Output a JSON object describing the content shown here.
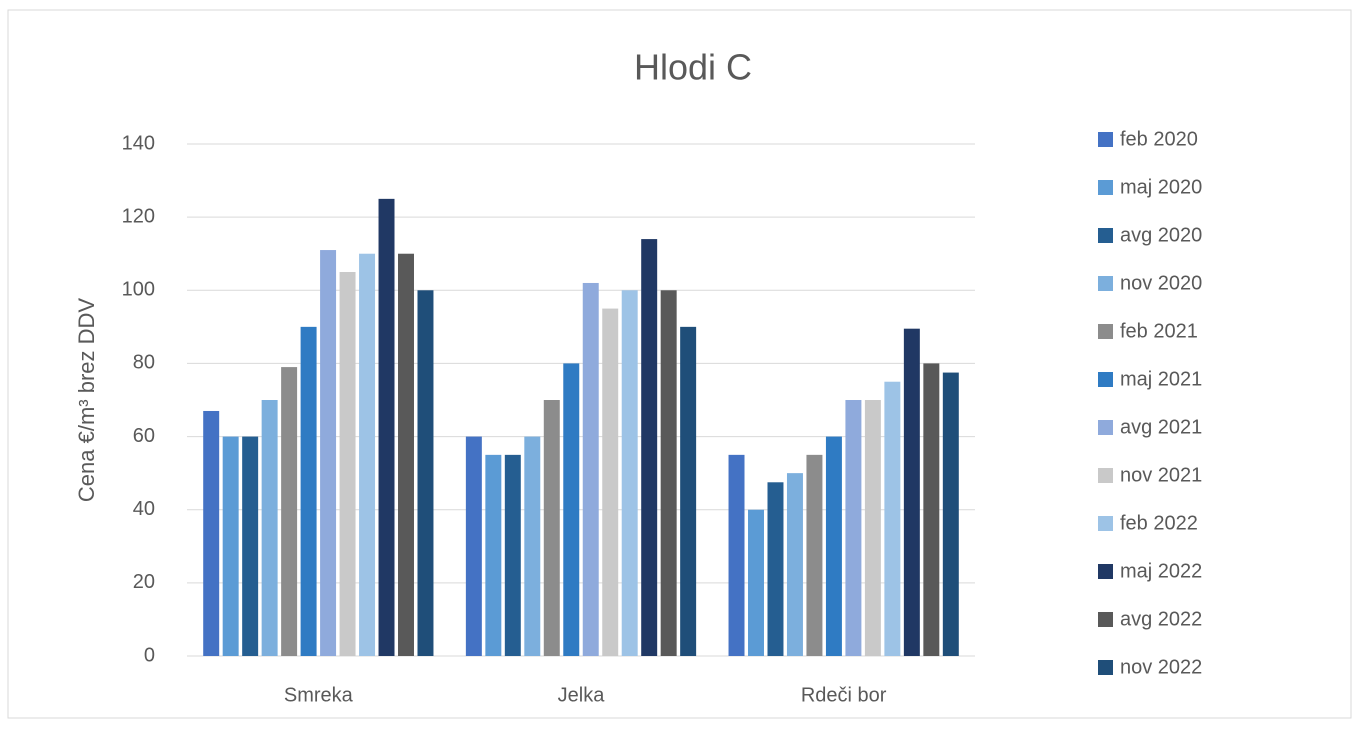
{
  "chart_data": {
    "type": "bar",
    "title": "Hlodi C",
    "y_label": "Cena €/m³ brez DDV",
    "categories": [
      "Smreka",
      "Jelka",
      "Rdeči bor"
    ],
    "series": [
      {
        "name": "feb 2020",
        "color": "#4472c4",
        "values": [
          67,
          60,
          55
        ]
      },
      {
        "name": "maj 2020",
        "color": "#5b9bd5",
        "values": [
          60,
          55,
          40
        ]
      },
      {
        "name": "avg 2020",
        "color": "#255e91",
        "values": [
          60,
          55,
          47.5
        ]
      },
      {
        "name": "nov 2020",
        "color": "#7cafdd",
        "values": [
          70,
          60,
          50
        ]
      },
      {
        "name": "feb 2021",
        "color": "#8c8c8c",
        "values": [
          79,
          70,
          55
        ]
      },
      {
        "name": "maj 2021",
        "color": "#2f7bc3",
        "values": [
          90,
          80,
          60
        ]
      },
      {
        "name": "avg 2021",
        "color": "#8faadc",
        "values": [
          111,
          102,
          70
        ]
      },
      {
        "name": "nov 2021",
        "color": "#c9c9c9",
        "values": [
          105,
          95,
          70
        ]
      },
      {
        "name": "feb 2022",
        "color": "#9dc3e6",
        "values": [
          110,
          100,
          75
        ]
      },
      {
        "name": "maj 2022",
        "color": "#203864",
        "values": [
          125,
          114,
          89.5
        ]
      },
      {
        "name": "avg 2022",
        "color": "#595959",
        "values": [
          110,
          100,
          80
        ]
      },
      {
        "name": "nov 2022",
        "color": "#1f4e79",
        "values": [
          100,
          90,
          77.5
        ]
      }
    ],
    "ylim": [
      0,
      140
    ],
    "yticks": [
      0,
      20,
      40,
      60,
      80,
      100,
      120,
      140
    ],
    "grid": true,
    "legend": "right"
  }
}
